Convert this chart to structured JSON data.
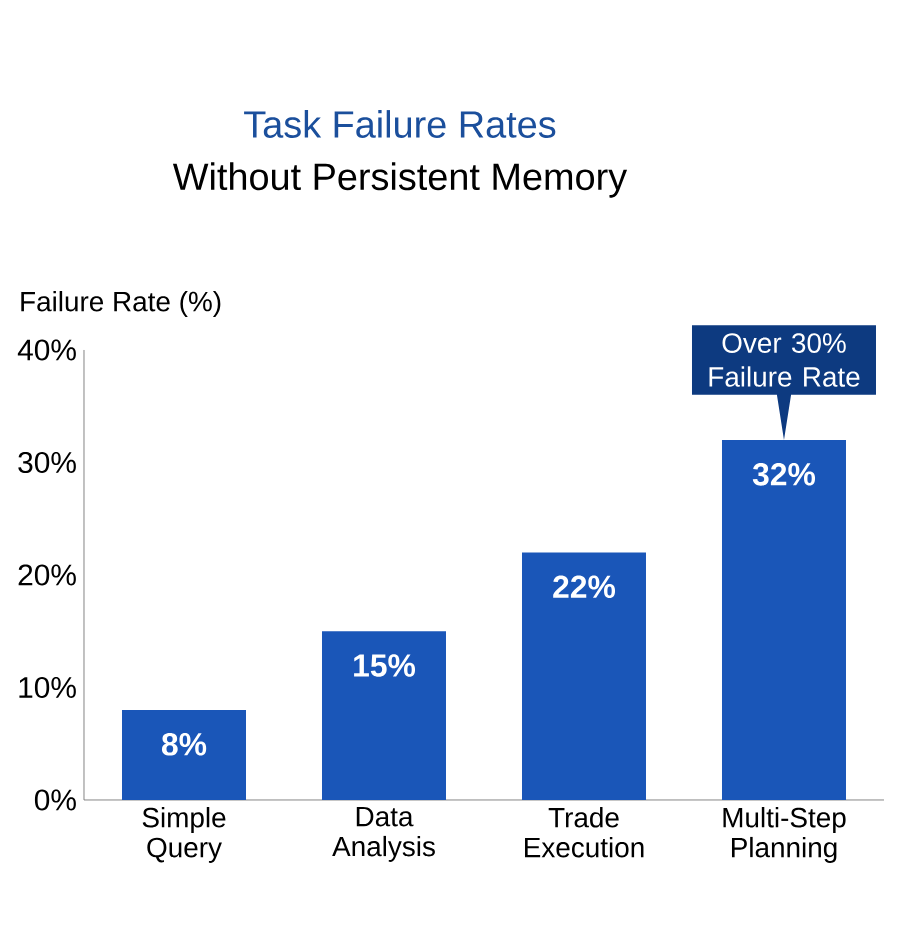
{
  "chart_data": {
    "type": "bar",
    "title": "Task Failure Rates",
    "subtitle": "Without Persistent Memory",
    "ylabel": "Failure Rate (%)",
    "categories": [
      "Simple Query",
      "Data Analysis",
      "Trade Execution",
      "Multi-Step Planning"
    ],
    "values": [
      8,
      15,
      22,
      32
    ],
    "value_labels": [
      "8%",
      "15%",
      "22%",
      "32%"
    ],
    "color": "#1a56b8",
    "ylim": [
      0,
      40
    ],
    "yticks": [
      {
        "value": 0,
        "label": "0%"
      },
      {
        "value": 10,
        "label": "10%"
      },
      {
        "value": 20,
        "label": "20%"
      },
      {
        "value": 30,
        "label": "30%"
      },
      {
        "value": 40,
        "label": "40%"
      }
    ],
    "grid": false,
    "annotations": [
      {
        "text": "Over 30% Failure Rate",
        "x": "Multi-Step Planning",
        "y": 32
      }
    ]
  }
}
